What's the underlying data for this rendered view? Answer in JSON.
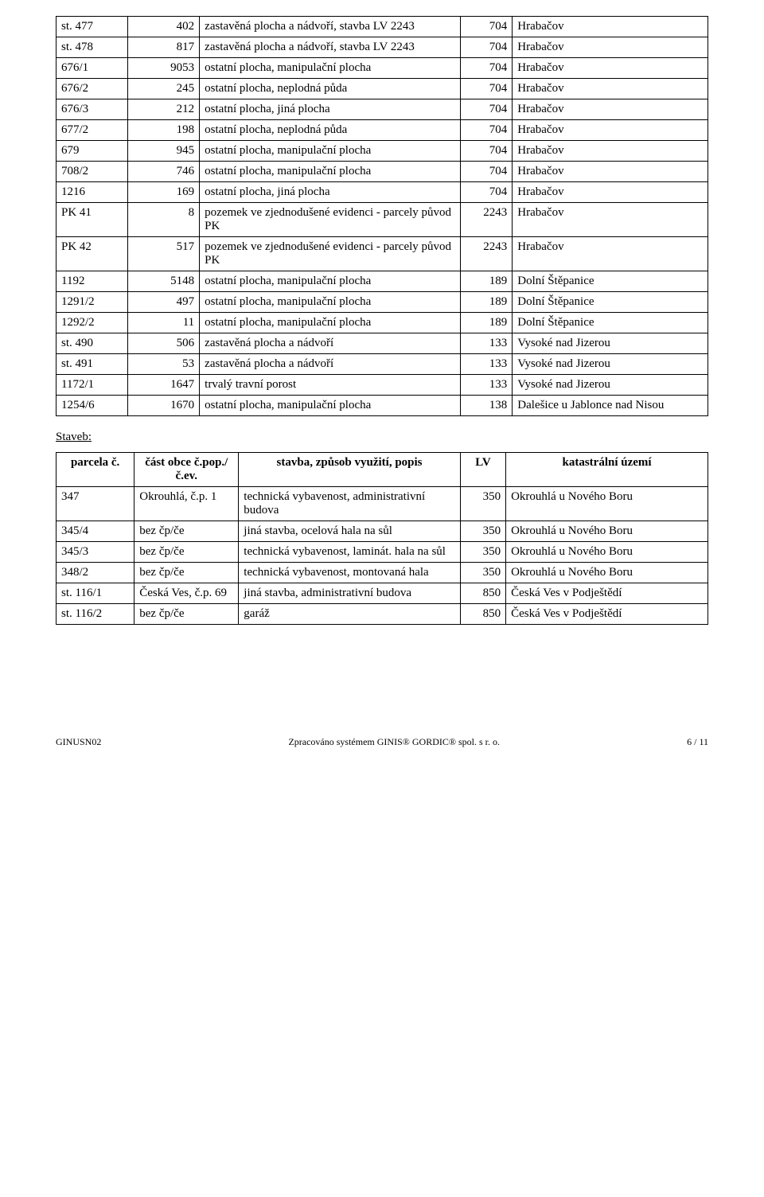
{
  "table1": {
    "rows": [
      [
        "st. 477",
        "402",
        "zastavěná plocha a nádvoří, stavba LV 2243",
        "704",
        "Hrabačov"
      ],
      [
        "st. 478",
        "817",
        "zastavěná plocha a nádvoří, stavba LV 2243",
        "704",
        "Hrabačov"
      ],
      [
        "676/1",
        "9053",
        "ostatní plocha, manipulační plocha",
        "704",
        "Hrabačov"
      ],
      [
        "676/2",
        "245",
        "ostatní plocha, neplodná půda",
        "704",
        "Hrabačov"
      ],
      [
        "676/3",
        "212",
        "ostatní plocha, jiná plocha",
        "704",
        "Hrabačov"
      ],
      [
        "677/2",
        "198",
        "ostatní plocha, neplodná půda",
        "704",
        "Hrabačov"
      ],
      [
        "679",
        "945",
        "ostatní plocha, manipulační plocha",
        "704",
        "Hrabačov"
      ],
      [
        "708/2",
        "746",
        "ostatní plocha, manipulační plocha",
        "704",
        "Hrabačov"
      ],
      [
        "1216",
        "169",
        "ostatní plocha, jiná plocha",
        "704",
        "Hrabačov"
      ],
      [
        "PK 41",
        "8",
        "pozemek ve zjednodušené evidenci - parcely původ PK",
        "2243",
        "Hrabačov"
      ],
      [
        "PK 42",
        "517",
        "pozemek ve zjednodušené evidenci - parcely původ PK",
        "2243",
        "Hrabačov"
      ],
      [
        "1192",
        "5148",
        "ostatní plocha, manipulační plocha",
        "189",
        "Dolní Štěpanice"
      ],
      [
        "1291/2",
        "497",
        "ostatní plocha, manipulační plocha",
        "189",
        "Dolní Štěpanice"
      ],
      [
        "1292/2",
        "11",
        "ostatní plocha, manipulační plocha",
        "189",
        "Dolní Štěpanice"
      ],
      [
        "st. 490",
        "506",
        "zastavěná plocha a nádvoří",
        "133",
        "Vysoké nad Jizerou"
      ],
      [
        "st. 491",
        "53",
        "zastavěná plocha a nádvoří",
        "133",
        "Vysoké nad Jizerou"
      ],
      [
        "1172/1",
        "1647",
        "trvalý travní porost",
        "133",
        "Vysoké nad Jizerou"
      ],
      [
        "1254/6",
        "1670",
        "ostatní plocha, manipulační plocha",
        "138",
        "Dalešice u Jablonce nad Nisou"
      ]
    ]
  },
  "section_label": "Staveb:",
  "table2": {
    "headers": [
      "parcela č.",
      "část obce č.pop./č.ev.",
      "stavba, způsob využití, popis",
      "LV",
      "katastrální území"
    ],
    "rows": [
      [
        "347",
        "Okrouhlá, č.p. 1",
        "technická vybavenost, administrativní budova",
        "350",
        "Okrouhlá u Nového Boru"
      ],
      [
        "345/4",
        "bez čp/če",
        "jiná stavba, ocelová hala na sůl",
        "350",
        "Okrouhlá u Nového Boru"
      ],
      [
        "345/3",
        "bez čp/če",
        "technická vybavenost, laminát. hala na sůl",
        "350",
        "Okrouhlá u Nového Boru"
      ],
      [
        "348/2",
        "bez čp/če",
        "technická vybavenost, montovaná hala",
        "350",
        "Okrouhlá u Nového Boru"
      ],
      [
        "st. 116/1",
        "Česká Ves, č.p. 69",
        "jiná stavba, administrativní budova",
        "850",
        "Česká Ves v Podještědí"
      ],
      [
        "st. 116/2",
        "bez čp/če",
        "garáž",
        "850",
        "Česká Ves v Podještědí"
      ]
    ]
  },
  "footer": {
    "left": "GINUSN02",
    "center": "Zpracováno systémem GINIS® GORDIC® spol. s r. o.",
    "right": "6 / 11"
  }
}
